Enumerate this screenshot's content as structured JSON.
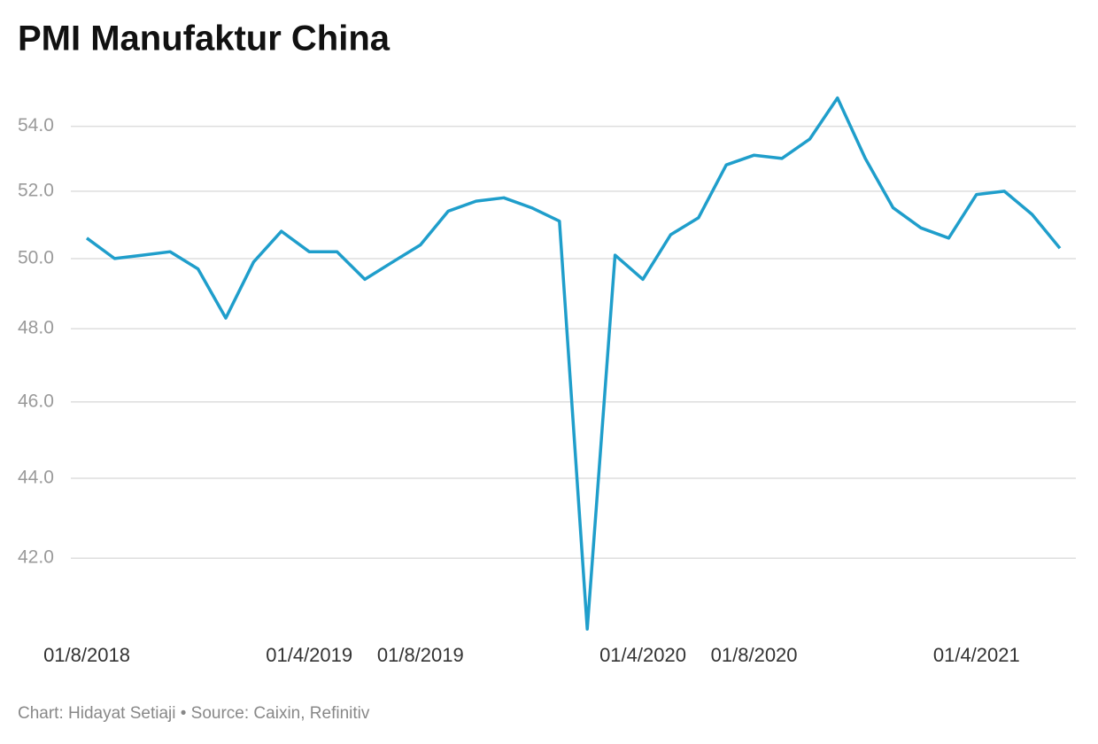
{
  "chart_data": {
    "type": "line",
    "title": "PMI Manufaktur China",
    "footer": "Chart: Hidayat Setiaji • Source: Caixin, Refinitiv",
    "categories": [
      "01/8/2018",
      null,
      null,
      null,
      null,
      null,
      null,
      null,
      "01/4/2019",
      null,
      null,
      null,
      "01/8/2019",
      null,
      null,
      null,
      null,
      null,
      null,
      null,
      "01/4/2020",
      null,
      null,
      null,
      "01/8/2020",
      null,
      null,
      null,
      null,
      null,
      null,
      null,
      "01/4/2021",
      null,
      null,
      null
    ],
    "series": [
      {
        "name": "PMI",
        "color": "#1f9ecb",
        "values": [
          50.6,
          50.0,
          50.1,
          50.2,
          49.7,
          48.3,
          49.9,
          50.8,
          50.2,
          50.2,
          49.4,
          49.9,
          50.4,
          51.4,
          51.7,
          51.8,
          51.5,
          51.1,
          40.3,
          50.1,
          49.4,
          50.7,
          51.2,
          52.8,
          53.1,
          53.0,
          53.6,
          54.9,
          53.0,
          51.5,
          50.9,
          50.6,
          51.9,
          52.0,
          51.3,
          50.3
        ]
      }
    ],
    "ylim": [
      40.1,
      55.2
    ],
    "log": true,
    "grid": true,
    "yticks": [
      {
        "value": 42,
        "label": "42.0"
      },
      {
        "value": 44,
        "label": "44.0"
      },
      {
        "value": 46,
        "label": "46.0"
      },
      {
        "value": 48,
        "label": "48.0"
      },
      {
        "value": 50,
        "label": "50.0"
      },
      {
        "value": 52,
        "label": "52.0"
      },
      {
        "value": 54,
        "label": "54.0"
      }
    ]
  }
}
